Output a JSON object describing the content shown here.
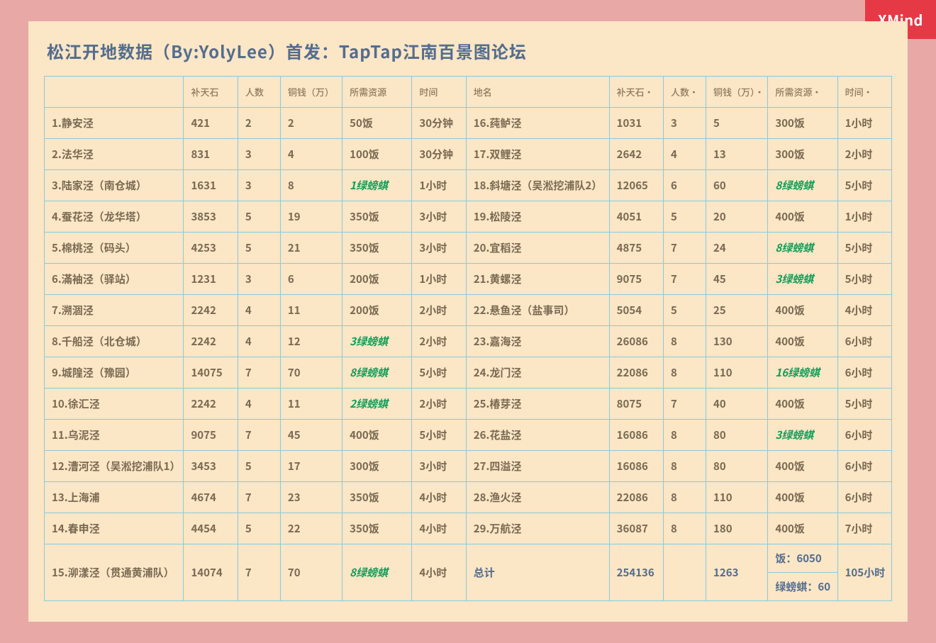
{
  "watermark": "XMind",
  "title": "松江开地数据（By:YolyLee）首发：TapTap江南百景图论坛",
  "headers": {
    "name": "",
    "stone": "补天石",
    "people": "人数",
    "coin": "铜钱（万）",
    "resource": "所需资源",
    "time": "时间",
    "name2": "地名",
    "stone2": "补天石·",
    "people2": "人数·",
    "coin2": "铜钱（万）·",
    "resource2": "所需资源·",
    "time2": "时间·"
  },
  "rows": [
    {
      "l": {
        "name": "1.静安泾",
        "stone": "421",
        "people": "2",
        "coin": "2",
        "res": "50饭",
        "resGreen": false,
        "time": "30分钟"
      },
      "r": {
        "name": "16.莼鲈泾",
        "stone": "1031",
        "people": "3",
        "coin": "5",
        "res": "300饭",
        "resGreen": false,
        "time": "1小时"
      }
    },
    {
      "l": {
        "name": "2.法华泾",
        "stone": "831",
        "people": "3",
        "coin": "4",
        "res": "100饭",
        "resGreen": false,
        "time": "30分钟"
      },
      "r": {
        "name": "17.双鲤泾",
        "stone": "2642",
        "people": "4",
        "coin": "13",
        "res": "300饭",
        "resGreen": false,
        "time": "2小时"
      }
    },
    {
      "l": {
        "name": "3.陆家泾（南仓城）",
        "stone": "1631",
        "people": "3",
        "coin": "8",
        "res": "1绿螃蜞",
        "resGreen": true,
        "time": "1小时"
      },
      "r": {
        "name": "18.斜塘泾（吴淞挖浦队2）",
        "stone": "12065",
        "people": "6",
        "coin": "60",
        "res": "8绿螃蜞",
        "resGreen": true,
        "time": "5小时"
      }
    },
    {
      "l": {
        "name": "4.蚕花泾（龙华塔）",
        "stone": "3853",
        "people": "5",
        "coin": "19",
        "res": "350饭",
        "resGreen": false,
        "time": "3小时"
      },
      "r": {
        "name": "19.松陵泾",
        "stone": "4051",
        "people": "5",
        "coin": "20",
        "res": "400饭",
        "resGreen": false,
        "time": "1小时"
      }
    },
    {
      "l": {
        "name": "5.棉桃泾（码头）",
        "stone": "4253",
        "people": "5",
        "coin": "21",
        "res": "350饭",
        "resGreen": false,
        "time": "3小时"
      },
      "r": {
        "name": "20.宜稻泾",
        "stone": "4875",
        "people": "7",
        "coin": "24",
        "res": "8绿螃蜞",
        "resGreen": true,
        "time": "5小时"
      }
    },
    {
      "l": {
        "name": "6.滿袖泾（驿站）",
        "stone": "1231",
        "people": "3",
        "coin": "6",
        "res": "200饭",
        "resGreen": false,
        "time": "1小时"
      },
      "r": {
        "name": "21.黄螺泾",
        "stone": "9075",
        "people": "7",
        "coin": "45",
        "res": "3绿螃蜞",
        "resGreen": true,
        "time": "5小时"
      }
    },
    {
      "l": {
        "name": "7.溯涸泾",
        "stone": "2242",
        "people": "4",
        "coin": "11",
        "res": "200饭",
        "resGreen": false,
        "time": "2小时"
      },
      "r": {
        "name": "22.悬鱼泾（盐事司）",
        "stone": "5054",
        "people": "5",
        "coin": "25",
        "res": "400饭",
        "resGreen": false,
        "time": "4小时"
      }
    },
    {
      "l": {
        "name": "8.千船泾（北仓城）",
        "stone": "2242",
        "people": "4",
        "coin": "12",
        "res": "3绿螃蜞",
        "resGreen": true,
        "time": "2小时"
      },
      "r": {
        "name": "23.嘉海泾",
        "stone": "26086",
        "people": "8",
        "coin": "130",
        "res": "400饭",
        "resGreen": false,
        "time": "6小时"
      }
    },
    {
      "l": {
        "name": "9.城隍泾（豫园）",
        "stone": "14075",
        "people": "7",
        "coin": "70",
        "res": "8绿螃蜞",
        "resGreen": true,
        "time": "5小时"
      },
      "r": {
        "name": "24.龙门泾",
        "stone": "22086",
        "people": "8",
        "coin": "110",
        "res": "16绿螃蜞",
        "resGreen": true,
        "time": "6小时"
      }
    },
    {
      "l": {
        "name": "10.徐汇泾",
        "stone": "2242",
        "people": "4",
        "coin": "11",
        "res": "2绿螃蜞",
        "resGreen": true,
        "time": "2小时"
      },
      "r": {
        "name": "25.椿芽泾",
        "stone": "8075",
        "people": "7",
        "coin": "40",
        "res": "400饭",
        "resGreen": false,
        "time": "5小时"
      }
    },
    {
      "l": {
        "name": "11.乌泥泾",
        "stone": "9075",
        "people": "7",
        "coin": "45",
        "res": "400饭",
        "resGreen": false,
        "time": "5小时"
      },
      "r": {
        "name": "26.花盐泾",
        "stone": "16086",
        "people": "8",
        "coin": "80",
        "res": "3绿螃蜞",
        "resGreen": true,
        "time": "6小时"
      }
    },
    {
      "l": {
        "name": "12.漕河泾（吴淞挖浦队1）",
        "stone": "3453",
        "people": "5",
        "coin": "17",
        "res": "300饭",
        "resGreen": false,
        "time": "3小时"
      },
      "r": {
        "name": "27.四溢泾",
        "stone": "16086",
        "people": "8",
        "coin": "80",
        "res": "400饭",
        "resGreen": false,
        "time": "6小时"
      }
    },
    {
      "l": {
        "name": "13.上海浦",
        "stone": "4674",
        "people": "7",
        "coin": "23",
        "res": "350饭",
        "resGreen": false,
        "time": "4小时"
      },
      "r": {
        "name": "28.渔火泾",
        "stone": "22086",
        "people": "8",
        "coin": "110",
        "res": "400饭",
        "resGreen": false,
        "time": "6小时"
      }
    },
    {
      "l": {
        "name": "14.春申泾",
        "stone": "4454",
        "people": "5",
        "coin": "22",
        "res": "350饭",
        "resGreen": false,
        "time": "4小时"
      },
      "r": {
        "name": "29.万航泾",
        "stone": "36087",
        "people": "8",
        "coin": "180",
        "res": "400饭",
        "resGreen": false,
        "time": "7小时"
      }
    }
  ],
  "lastRow": {
    "l": {
      "name": "15.泖漾泾（贯通黄浦队）",
      "stone": "14074",
      "people": "7",
      "coin": "70",
      "res": "8绿螃蜞",
      "resGreen": true,
      "time": "4小时"
    },
    "total": {
      "label": "总计",
      "stone": "254136",
      "people": "",
      "coin": "1263",
      "resTop": "饭：6050",
      "resBottom": "绿螃蜞：60",
      "time": "105小时"
    }
  },
  "colors": {
    "page_bg": "#e8a9a6",
    "card_bg": "#fbe6c6",
    "border": "#86cbe0",
    "text_main": "#7a6a52",
    "text_header": "#8f7a5e",
    "text_blue": "#546d8e",
    "text_green": "#0f9d58",
    "watermark_bg": "#e63946"
  }
}
